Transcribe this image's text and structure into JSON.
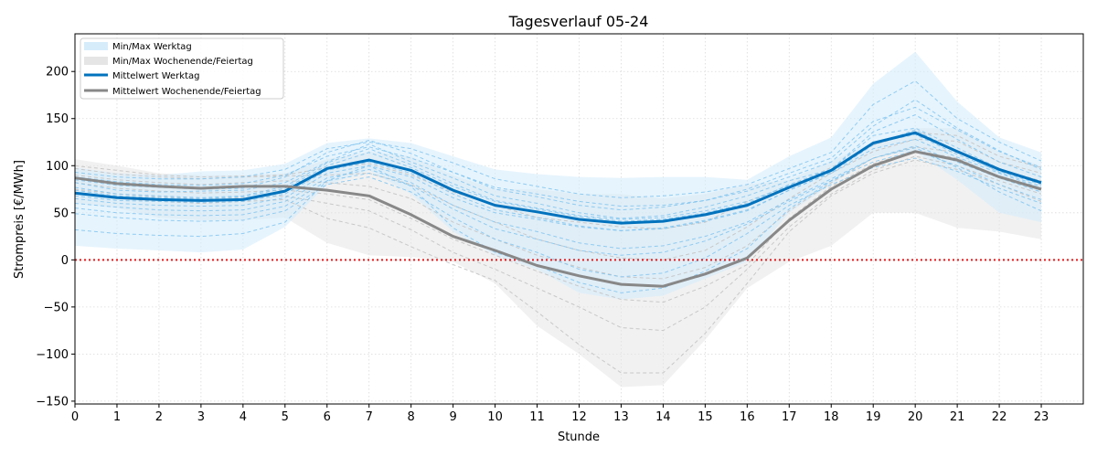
{
  "chart_data": {
    "type": "line",
    "title": "Tagesverlauf 05-24",
    "xlabel": "Stunde",
    "ylabel": "Strompreis [€/MWh]",
    "x": [
      0,
      1,
      2,
      3,
      4,
      5,
      6,
      7,
      8,
      9,
      10,
      11,
      12,
      13,
      14,
      15,
      16,
      17,
      18,
      19,
      20,
      21,
      22,
      23
    ],
    "xlim": [
      0,
      24
    ],
    "ylim": [
      -153,
      240
    ],
    "yticks": [
      -150,
      -100,
      -50,
      0,
      50,
      100,
      150,
      200
    ],
    "grid": true,
    "legend_position": "top-left",
    "reference_line": {
      "y": 0,
      "color": "#e41a1c",
      "style": "dotted"
    },
    "bands": [
      {
        "name": "Min/Max Werktag",
        "color": "#d6ecfb",
        "min": [
          15,
          12,
          10,
          8,
          11,
          35,
          80,
          95,
          70,
          30,
          5,
          -10,
          -35,
          -42,
          -38,
          -20,
          -2,
          50,
          80,
          110,
          115,
          85,
          50,
          40
        ],
        "max": [
          98,
          92,
          90,
          94,
          95,
          102,
          124,
          129,
          124,
          110,
          96,
          91,
          88,
          87,
          88,
          88,
          85,
          110,
          130,
          187,
          221,
          168,
          130,
          114
        ]
      },
      {
        "name": "Min/Max Wochenende/Feiertag",
        "color": "#e5e5e5",
        "min": [
          60,
          55,
          45,
          42,
          42,
          45,
          18,
          5,
          3,
          -2,
          -25,
          -70,
          -100,
          -135,
          -133,
          -85,
          -30,
          -2,
          15,
          50,
          50,
          34,
          30,
          22
        ],
        "max": [
          107,
          100,
          92,
          90,
          90,
          92,
          107,
          115,
          110,
          90,
          75,
          75,
          70,
          70,
          65,
          70,
          80,
          85,
          105,
          125,
          140,
          140,
          115,
          100
        ]
      }
    ],
    "series": [
      {
        "name": "Mittelwert Werktag",
        "color": "#0072bd",
        "values": [
          71,
          66,
          64,
          63,
          64,
          73,
          97,
          106,
          95,
          74,
          58,
          51,
          43,
          39,
          41,
          48,
          58,
          77,
          95,
          124,
          135,
          115,
          96,
          82
        ]
      },
      {
        "name": "Mittelwert Wochenende/Feiertag",
        "color": "#888888",
        "values": [
          87,
          81,
          78,
          76,
          78,
          78,
          74,
          68,
          48,
          25,
          10,
          -6,
          -17,
          -26,
          -28,
          -15,
          2,
          42,
          75,
          100,
          115,
          106,
          88,
          75
        ]
      }
    ],
    "background_lines": {
      "werktag_color": "#80c4f0",
      "wochenende_color": "#c8c8c8",
      "werktag": [
        [
          82,
          74,
          72,
          73,
          74,
          82,
          104,
          123,
          104,
          87,
          68,
          60,
          50,
          44,
          47,
          56,
          68,
          84,
          96,
          132,
          140,
          119,
          97,
          83
        ],
        [
          77,
          70,
          68,
          66,
          68,
          78,
          103,
          118,
          101,
          81,
          63,
          55,
          47,
          43,
          45,
          52,
          62,
          79,
          94,
          124,
          133,
          112,
          94,
          80
        ],
        [
          68,
          63,
          62,
          61,
          62,
          70,
          95,
          104,
          92,
          70,
          53,
          45,
          36,
          31,
          34,
          42,
          53,
          74,
          92,
          118,
          128,
          109,
          92,
          76
        ],
        [
          85,
          79,
          77,
          75,
          76,
          88,
          114,
          127,
          113,
          93,
          75,
          67,
          58,
          53,
          56,
          63,
          75,
          92,
          108,
          147,
          162,
          138,
          115,
          98
        ],
        [
          60,
          56,
          53,
          52,
          53,
          62,
          87,
          96,
          82,
          58,
          40,
          30,
          18,
          12,
          15,
          25,
          40,
          64,
          86,
          108,
          121,
          104,
          87,
          72
        ],
        [
          49,
          45,
          42,
          41,
          42,
          52,
          80,
          88,
          72,
          45,
          22,
          8,
          -10,
          -18,
          -14,
          2,
          28,
          58,
          80,
          98,
          108,
          94,
          76,
          60
        ],
        [
          93,
          88,
          86,
          86,
          88,
          96,
          118,
          125,
          118,
          103,
          86,
          78,
          70,
          66,
          68,
          72,
          80,
          97,
          114,
          165,
          190,
          150,
          125,
          105
        ],
        [
          32,
          28,
          26,
          25,
          28,
          40,
          84,
          100,
          78,
          34,
          8,
          -6,
          -24,
          -35,
          -30,
          -12,
          12,
          54,
          84,
          108,
          119,
          98,
          72,
          52
        ],
        [
          74,
          68,
          66,
          65,
          67,
          76,
          100,
          114,
          98,
          78,
          62,
          54,
          46,
          41,
          43,
          50,
          60,
          80,
          96,
          136,
          154,
          128,
          104,
          88
        ],
        [
          65,
          60,
          58,
          57,
          58,
          66,
          92,
          100,
          88,
          66,
          50,
          43,
          35,
          31,
          33,
          41,
          52,
          74,
          93,
          122,
          138,
          115,
          93,
          78
        ],
        [
          88,
          83,
          80,
          79,
          81,
          90,
          110,
          120,
          108,
          93,
          77,
          70,
          62,
          57,
          58,
          63,
          73,
          88,
          104,
          142,
          170,
          140,
          116,
          96
        ],
        [
          55,
          50,
          48,
          47,
          48,
          57,
          84,
          92,
          79,
          54,
          33,
          22,
          10,
          5,
          8,
          20,
          38,
          62,
          84,
          104,
          116,
          100,
          80,
          64
        ]
      ],
      "wochenende": [
        [
          97,
          91,
          88,
          86,
          88,
          89,
          90,
          92,
          80,
          58,
          40,
          22,
          10,
          2,
          0,
          10,
          35,
          65,
          92,
          115,
          128,
          126,
          104,
          92
        ],
        [
          90,
          85,
          82,
          80,
          82,
          84,
          82,
          78,
          65,
          40,
          22,
          5,
          -8,
          -18,
          -20,
          -8,
          15,
          52,
          82,
          108,
          120,
          114,
          96,
          84
        ],
        [
          75,
          70,
          67,
          65,
          66,
          68,
          60,
          52,
          32,
          8,
          -10,
          -30,
          -50,
          -72,
          -75,
          -50,
          -10,
          35,
          70,
          95,
          110,
          100,
          84,
          70
        ],
        [
          70,
          65,
          62,
          60,
          62,
          64,
          44,
          34,
          14,
          -5,
          -22,
          -55,
          -90,
          -120,
          -120,
          -78,
          -25,
          30,
          68,
          92,
          106,
          96,
          80,
          62
        ],
        [
          100,
          95,
          90,
          88,
          89,
          90,
          98,
          102,
          90,
          72,
          58,
          45,
          40,
          35,
          33,
          40,
          62,
          78,
          98,
          122,
          135,
          132,
          110,
          98
        ],
        [
          82,
          76,
          73,
          71,
          72,
          74,
          70,
          64,
          44,
          22,
          5,
          -12,
          -28,
          -42,
          -45,
          -28,
          -5,
          44,
          78,
          102,
          116,
          108,
          88,
          76
        ]
      ]
    }
  }
}
